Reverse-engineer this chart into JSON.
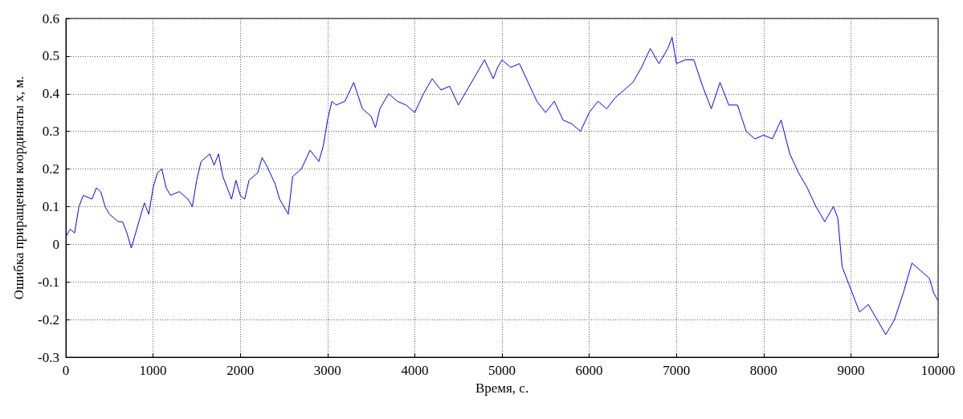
{
  "chart_data": {
    "type": "line",
    "xlabel": "Время, с.",
    "ylabel": "Ошибка приращения координаты x, м.",
    "xlim": [
      0,
      10000
    ],
    "xticks": [
      0,
      1000,
      2000,
      3000,
      4000,
      5000,
      6000,
      7000,
      8000,
      9000,
      10000
    ],
    "ylim": [
      -0.3,
      0.6
    ],
    "yticks": [
      -0.3,
      -0.2,
      -0.1,
      0,
      0.1,
      0.2,
      0.3,
      0.4,
      0.5,
      0.6
    ],
    "grid": true,
    "marker": "none",
    "line_style": "solid",
    "x": [
      0,
      50,
      100,
      150,
      200,
      300,
      350,
      400,
      450,
      500,
      550,
      600,
      650,
      700,
      750,
      800,
      850,
      900,
      950,
      1000,
      1050,
      1100,
      1150,
      1200,
      1300,
      1400,
      1450,
      1500,
      1550,
      1650,
      1700,
      1750,
      1800,
      1900,
      1950,
      2000,
      2050,
      2100,
      2200,
      2250,
      2300,
      2400,
      2450,
      2550,
      2600,
      2700,
      2800,
      2900,
      2950,
      3000,
      3050,
      3100,
      3200,
      3300,
      3400,
      3500,
      3550,
      3600,
      3700,
      3800,
      3900,
      4000,
      4100,
      4200,
      4300,
      4400,
      4500,
      4600,
      4700,
      4800,
      4900,
      4950,
      5000,
      5100,
      5200,
      5300,
      5400,
      5500,
      5600,
      5700,
      5800,
      5900,
      6000,
      6100,
      6200,
      6300,
      6400,
      6500,
      6600,
      6700,
      6800,
      6900,
      6950,
      7000,
      7100,
      7200,
      7300,
      7400,
      7500,
      7600,
      7700,
      7800,
      7900,
      8000,
      8100,
      8200,
      8300,
      8400,
      8500,
      8600,
      8700,
      8800,
      8850,
      8900,
      9000,
      9050,
      9100,
      9200,
      9300,
      9400,
      9500,
      9600,
      9700,
      9800,
      9900,
      9950,
      10000
    ],
    "series": [
      {
        "color": "#0000ff",
        "values": [
          0.02,
          0.04,
          0.03,
          0.1,
          0.13,
          0.12,
          0.15,
          0.14,
          0.1,
          0.08,
          0.07,
          0.06,
          0.06,
          0.03,
          -0.01,
          0.03,
          0.07,
          0.11,
          0.08,
          0.15,
          0.19,
          0.2,
          0.15,
          0.13,
          0.14,
          0.12,
          0.1,
          0.17,
          0.22,
          0.24,
          0.21,
          0.24,
          0.18,
          0.12,
          0.17,
          0.13,
          0.12,
          0.17,
          0.19,
          0.23,
          0.21,
          0.16,
          0.12,
          0.08,
          0.18,
          0.2,
          0.25,
          0.22,
          0.26,
          0.33,
          0.38,
          0.37,
          0.38,
          0.43,
          0.36,
          0.34,
          0.31,
          0.36,
          0.4,
          0.38,
          0.37,
          0.35,
          0.4,
          0.44,
          0.41,
          0.42,
          0.37,
          0.41,
          0.45,
          0.49,
          0.44,
          0.47,
          0.49,
          0.47,
          0.48,
          0.43,
          0.38,
          0.35,
          0.38,
          0.33,
          0.32,
          0.3,
          0.35,
          0.38,
          0.36,
          0.39,
          0.41,
          0.43,
          0.47,
          0.52,
          0.48,
          0.52,
          0.55,
          0.48,
          0.49,
          0.49,
          0.42,
          0.36,
          0.43,
          0.37,
          0.37,
          0.3,
          0.28,
          0.29,
          0.28,
          0.33,
          0.24,
          0.19,
          0.15,
          0.1,
          0.06,
          0.1,
          0.07,
          -0.06,
          -0.12,
          -0.15,
          -0.18,
          -0.16,
          -0.2,
          -0.24,
          -0.2,
          -0.13,
          -0.05,
          -0.07,
          -0.09,
          -0.13,
          -0.15
        ]
      }
    ]
  }
}
